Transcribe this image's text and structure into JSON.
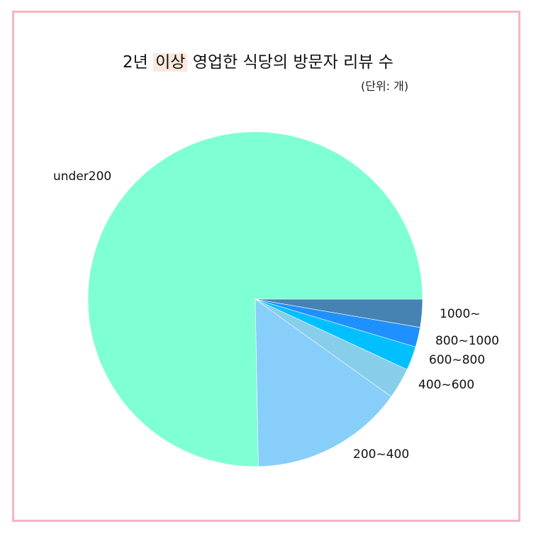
{
  "title": {
    "prefix": "2년 ",
    "highlight": "이상",
    "suffix": " 영업한 식당의 방문자 리뷰 수"
  },
  "unit_note": "(단위: 개)",
  "chart_data": {
    "type": "pie",
    "title": "2년 이상 영업한 식당의 방문자 리뷰 수",
    "subtitle": "(단위: 개)",
    "categories": [
      "under200",
      "200~400",
      "400~600",
      "600~800",
      "800~1000",
      "1000~"
    ],
    "values": [
      75.3,
      14.8,
      3.0,
      2.3,
      1.9,
      2.7
    ],
    "colors": [
      "#7fffd4",
      "#87cefa",
      "#87ceeb",
      "#00bfff",
      "#1e90ff",
      "#4682b4"
    ],
    "start_angle": 0,
    "direction": "counterclockwise",
    "legend": "none"
  }
}
